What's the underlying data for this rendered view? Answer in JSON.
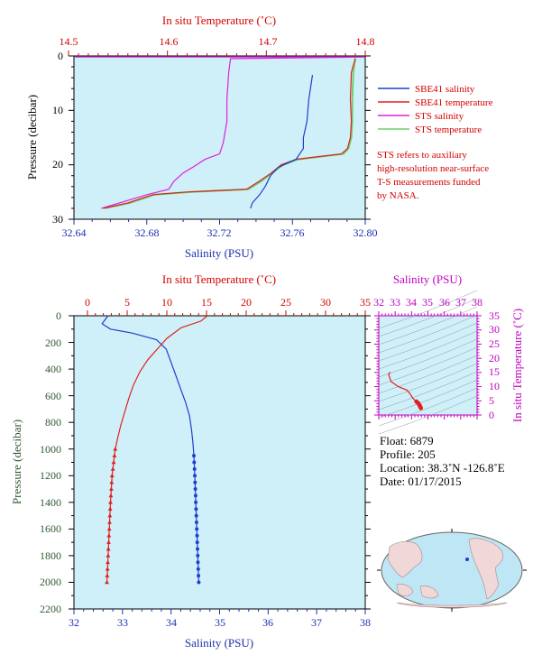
{
  "colors": {
    "salinity": "#1f3fd0",
    "temperature": "#e02020",
    "sts_salinity": "#e020e0",
    "sts_temperature": "#70d070",
    "plot_bg": "#cff0f8",
    "temperature_axis_text": "#d40000",
    "salinity_axis_text": "#1c2fb0",
    "ts_axis_text": "#c000c0",
    "pressure_label_text": "#2e5a2e"
  },
  "top_plot": {
    "top_axis_label": "In situ Temperature (˚C)",
    "bottom_axis_label": "Salinity (PSU)",
    "left_axis_label": "Pressure (decibar)",
    "temp_ticks": [
      "14.5",
      "14.6",
      "14.7",
      "14.8"
    ],
    "sal_ticks": [
      "32.64",
      "32.68",
      "32.72",
      "32.76",
      "32.80"
    ],
    "pressure_ticks": [
      "0",
      "10",
      "20",
      "30"
    ],
    "legend": [
      "SBE41 salinity",
      "SBE41 temperature",
      "STS salinity",
      "STS temperature"
    ],
    "note_lines": [
      "STS refers to auxiliary",
      "high-resolution near-surface",
      "T-S measurements funded",
      "by NASA."
    ]
  },
  "main_plot": {
    "top_axis_label": "In situ Temperature (˚C)",
    "bottom_axis_label": "Salinity (PSU)",
    "left_axis_label": "Pressure (decibar)",
    "temp_ticks": [
      "0",
      "5",
      "10",
      "15",
      "20",
      "25",
      "30",
      "35"
    ],
    "sal_ticks": [
      "32",
      "33",
      "34",
      "35",
      "36",
      "37",
      "38"
    ],
    "pressure_ticks": [
      "0",
      "200",
      "400",
      "600",
      "800",
      "1000",
      "1200",
      "1400",
      "1600",
      "1800",
      "2000",
      "2200"
    ]
  },
  "ts_plot": {
    "top_axis_label": "Salinity (PSU)",
    "right_axis_label": "In situ Temperature (˚C)",
    "sal_ticks": [
      "32",
      "33",
      "34",
      "35",
      "36",
      "37",
      "38"
    ],
    "temp_ticks": [
      "35",
      "30",
      "25",
      "20",
      "15",
      "10",
      "5",
      "0"
    ]
  },
  "info": {
    "float_line": "Float: 6879",
    "profile_line": "Profile: 205",
    "location_line": "Location: 38.3˚N -126.8˚E",
    "date_line": "Date: 01/17/2015"
  },
  "chart_data": [
    {
      "type": "line",
      "xlabel": "Salinity (PSU)",
      "x2label": "In situ Temperature (˚C)",
      "ylabel": "Pressure (decibar)",
      "xlim": [
        32.64,
        32.8
      ],
      "x2lim": [
        14.5,
        14.8
      ],
      "ylim": [
        30,
        0
      ],
      "legend_placement": "right",
      "series": [
        {
          "name": "SBE41 salinity",
          "axis": "salinity",
          "points": [
            [
              32.771,
              3.5
            ],
            [
              32.769,
              8
            ],
            [
              32.768,
              12
            ],
            [
              32.766,
              15
            ],
            [
              32.766,
              17
            ],
            [
              32.762,
              19
            ],
            [
              32.752,
              20.5
            ],
            [
              32.748,
              22
            ],
            [
              32.745,
              24
            ],
            [
              32.742,
              25.5
            ],
            [
              32.738,
              27
            ],
            [
              32.737,
              28
            ]
          ]
        },
        {
          "name": "SBE41 temperature",
          "axis": "temperature",
          "points": [
            [
              14.79,
              0.5
            ],
            [
              14.786,
              3
            ],
            [
              14.785,
              8
            ],
            [
              14.786,
              12
            ],
            [
              14.785,
              15
            ],
            [
              14.782,
              17
            ],
            [
              14.776,
              18
            ],
            [
              14.73,
              19
            ],
            [
              14.715,
              20
            ],
            [
              14.705,
              21.5
            ],
            [
              14.693,
              23
            ],
            [
              14.68,
              24.5
            ],
            [
              14.62,
              25
            ],
            [
              14.585,
              25.5
            ],
            [
              14.56,
              27
            ],
            [
              14.535,
              28
            ]
          ]
        },
        {
          "name": "STS salinity",
          "axis": "salinity",
          "points": [
            [
              32.64,
              0.2
            ],
            [
              32.8,
              0.2
            ],
            [
              32.726,
              0.5
            ],
            [
              32.725,
              3
            ],
            [
              32.724,
              8
            ],
            [
              32.724,
              12
            ],
            [
              32.722,
              16
            ],
            [
              32.72,
              18
            ],
            [
              32.712,
              19
            ],
            [
              32.705,
              20.5
            ],
            [
              32.7,
              21.5
            ],
            [
              32.695,
              23
            ],
            [
              32.692,
              24.5
            ],
            [
              32.68,
              25.5
            ],
            [
              32.67,
              26.5
            ],
            [
              32.66,
              27.5
            ],
            [
              32.655,
              28
            ]
          ]
        },
        {
          "name": "STS temperature",
          "axis": "temperature",
          "points": [
            [
              14.79,
              0.4
            ],
            [
              14.788,
              3
            ],
            [
              14.787,
              8
            ],
            [
              14.787,
              12
            ],
            [
              14.786,
              15
            ],
            [
              14.783,
              17
            ],
            [
              14.778,
              18
            ],
            [
              14.732,
              19
            ],
            [
              14.717,
              20
            ],
            [
              14.706,
              21.5
            ],
            [
              14.695,
              23
            ],
            [
              14.682,
              24.5
            ],
            [
              14.624,
              25
            ],
            [
              14.587,
              25.5
            ],
            [
              14.562,
              27
            ],
            [
              14.537,
              28
            ]
          ]
        }
      ]
    },
    {
      "type": "line",
      "xlabel": "Salinity (PSU)",
      "x2label": "In situ Temperature (˚C)",
      "ylabel": "Pressure (decibar)",
      "xlim": [
        32,
        38
      ],
      "x2lim": [
        0,
        35
      ],
      "ylim": [
        2200,
        0
      ],
      "series": [
        {
          "axis": "salinity",
          "points": [
            [
              32.7,
              0
            ],
            [
              32.58,
              60
            ],
            [
              32.75,
              100
            ],
            [
              33.2,
              130
            ],
            [
              33.7,
              180
            ],
            [
              33.9,
              250
            ],
            [
              34.0,
              350
            ],
            [
              34.1,
              450
            ],
            [
              34.2,
              550
            ],
            [
              34.3,
              650
            ],
            [
              34.38,
              750
            ],
            [
              34.42,
              850
            ],
            [
              34.45,
              950
            ],
            [
              34.47,
              1050
            ],
            [
              34.49,
              1200
            ],
            [
              34.51,
              1400
            ],
            [
              34.53,
              1600
            ],
            [
              34.55,
              1800
            ],
            [
              34.57,
              2000
            ]
          ]
        },
        {
          "axis": "temperature",
          "points": [
            [
              15.1,
              0
            ],
            [
              14.3,
              40
            ],
            [
              11.8,
              90
            ],
            [
              10.0,
              170
            ],
            [
              8.8,
              250
            ],
            [
              7.6,
              330
            ],
            [
              6.6,
              420
            ],
            [
              5.8,
              520
            ],
            [
              5.2,
              620
            ],
            [
              4.7,
              720
            ],
            [
              4.2,
              820
            ],
            [
              3.8,
              920
            ],
            [
              3.5,
              1000
            ],
            [
              3.3,
              1100
            ],
            [
              3.1,
              1200
            ],
            [
              2.9,
              1400
            ],
            [
              2.75,
              1600
            ],
            [
              2.6,
              1800
            ],
            [
              2.45,
              2000
            ]
          ]
        }
      ]
    },
    {
      "type": "line",
      "xlabel": "Salinity (PSU)",
      "ylabel": "In situ Temperature (˚C)",
      "xlim": [
        32,
        38
      ],
      "ylim": [
        0,
        35
      ],
      "series": [
        {
          "axis": "ts",
          "points": [
            [
              32.7,
              15.1
            ],
            [
              32.6,
              14.3
            ],
            [
              32.75,
              11.8
            ],
            [
              33.2,
              10
            ],
            [
              33.7,
              8.8
            ],
            [
              33.9,
              7.6
            ],
            [
              34.0,
              6.6
            ],
            [
              34.1,
              5.8
            ],
            [
              34.2,
              5.2
            ],
            [
              34.3,
              4.7
            ],
            [
              34.4,
              4.2
            ],
            [
              34.45,
              3.8
            ],
            [
              34.5,
              3.3
            ],
            [
              34.53,
              2.9
            ],
            [
              34.57,
              2.45
            ]
          ]
        }
      ]
    }
  ]
}
